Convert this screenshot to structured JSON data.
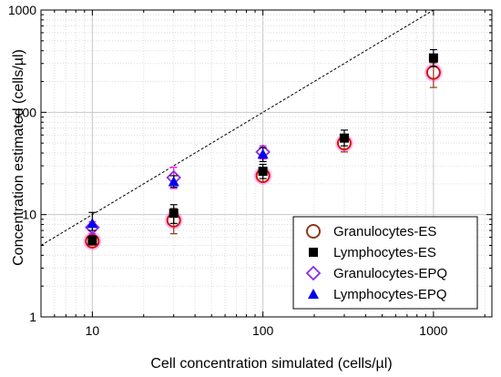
{
  "chart_data": {
    "type": "scatter",
    "xscale": "log",
    "yscale": "log",
    "xlim": [
      5,
      2200
    ],
    "ylim": [
      1,
      1000
    ],
    "xlabel": "Cell concentration simulated  (cells/µl)",
    "ylabel": "Concentration estimated (cells/µl)",
    "x_ticks": [
      10,
      100,
      1000
    ],
    "x_tick_labels": [
      "10",
      "100",
      "1000"
    ],
    "y_ticks": [
      1,
      10,
      100,
      1000
    ],
    "y_tick_labels": [
      "1",
      "10",
      "100",
      "1000"
    ],
    "grid": true,
    "legend_position": "bottom-right",
    "reference_line": {
      "style": "dashed",
      "x": [
        5,
        1000
      ],
      "y": [
        5,
        1000
      ]
    },
    "series": [
      {
        "name": "Granulocytes-ES",
        "marker": "open-circle",
        "color": "#8b3a1a",
        "x": [
          10,
          30,
          100,
          300,
          1000
        ],
        "y": [
          5.5,
          8.8,
          24,
          50,
          245
        ],
        "err_low": [
          5.0,
          6.5,
          21,
          41,
          175
        ],
        "err_high": [
          6.0,
          11.5,
          28,
          60,
          305
        ]
      },
      {
        "name": "Lymphocytes-ES",
        "marker": "filled-square",
        "color": "#000000",
        "x": [
          10,
          30,
          100,
          300,
          1000
        ],
        "y": [
          5.6,
          10.3,
          26.5,
          56,
          340
        ],
        "err_low": [
          5.1,
          8.2,
          22.5,
          47,
          280
        ],
        "err_high": [
          6.2,
          12.5,
          31,
          67,
          410
        ]
      },
      {
        "name": "Granulocytes-EPQ",
        "marker": "open-diamond",
        "color": "#8a2be2",
        "x": [
          10,
          30,
          100
        ],
        "y": [
          7.5,
          23,
          41
        ],
        "err_low": [
          6.5,
          18,
          35
        ],
        "err_high": [
          8.5,
          29,
          47
        ]
      },
      {
        "name": "Lymphocytes-EPQ",
        "marker": "filled-triangle",
        "color": "#0000ee",
        "x": [
          10,
          30,
          100
        ],
        "y": [
          8.2,
          21,
          39
        ],
        "err_low": [
          7.0,
          18.5,
          33
        ],
        "err_high": [
          10.5,
          24,
          45
        ]
      }
    ],
    "highlight_color": "#ff0000",
    "highlight_shadow": "#ff00ff"
  }
}
